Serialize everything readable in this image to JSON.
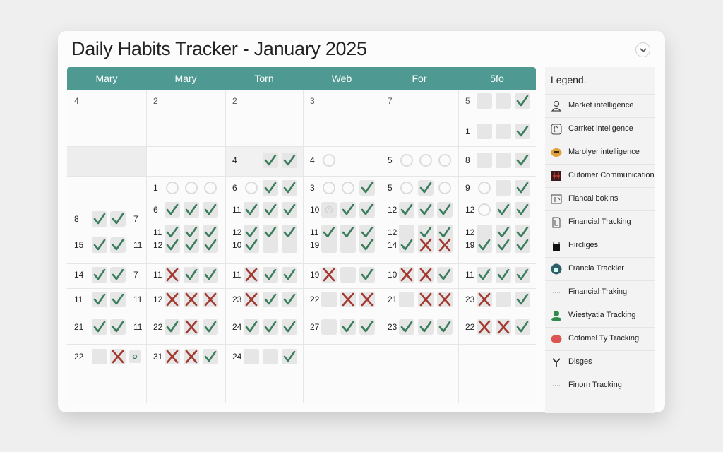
{
  "header": {
    "title": "Daily Habits Tracker - January 2025",
    "collapse_icon": "chevron-down-icon"
  },
  "colors": {
    "header": "#4e9a92",
    "check": "#3a7d5c",
    "cross": "#a3382f",
    "box": "#e6e6e6"
  },
  "columns": [
    "Mary",
    "Mary",
    "Torn",
    "Web",
    "For",
    "5fo"
  ],
  "mark_legend": {
    "c": "check",
    "x": "cross",
    "e": "empty-box",
    "o": "circle",
    "t": "clock",
    "s": "small-dot",
    "_": "blank"
  },
  "lines": [
    {
      "row": "A1",
      "cells": [
        {
          "n": "4",
          "m": ""
        },
        {
          "n": "2",
          "m": ""
        },
        {
          "n": "2",
          "m": ""
        },
        {
          "n": "3",
          "m": ""
        },
        {
          "n": "7",
          "m": ""
        },
        {
          "n": "5",
          "m": "eec"
        }
      ]
    },
    {
      "row": "A2",
      "cells": [
        null,
        null,
        null,
        null,
        null,
        {
          "n": "1",
          "m": "eec"
        }
      ]
    },
    {
      "row": "B1",
      "cells": [
        null,
        null,
        {
          "n": "4",
          "m": "_cc"
        },
        {
          "n": "4",
          "m": "o"
        },
        {
          "n": "5",
          "m": "ooo"
        },
        {
          "n": "8",
          "m": "eec"
        }
      ]
    },
    {
      "row": "C1",
      "cells": [
        null,
        {
          "n": "1",
          "m": "ooo"
        },
        {
          "n": "6",
          "m": "occ"
        },
        {
          "n": "3",
          "m": "ooc"
        },
        {
          "n": "5",
          "m": "oco"
        },
        {
          "n": "9",
          "m": "oec"
        }
      ]
    },
    {
      "row": "C2",
      "cells": [
        null,
        {
          "n": "6",
          "m": "ccc"
        },
        {
          "n": "11",
          "m": "ccc"
        },
        {
          "n": "10",
          "m": "tcc"
        },
        {
          "n": "12",
          "m": "ccc"
        },
        {
          "n": "12",
          "m": "occ"
        }
      ]
    },
    {
      "row": "C3",
      "cells": [
        {
          "n": "8",
          "m": "cc",
          "t": "7"
        },
        null,
        null,
        null,
        null,
        null
      ]
    },
    {
      "row": "C4",
      "cells": [
        null,
        {
          "n": "11",
          "m": "ccc"
        },
        {
          "n": "12",
          "m": "ccc"
        },
        {
          "n": "11",
          "m": "ccc"
        },
        {
          "n": "12",
          "m": "ecc"
        },
        {
          "n": "12",
          "m": "ecc"
        }
      ]
    },
    {
      "row": "C5",
      "cells": [
        {
          "n": "15",
          "m": "cc",
          "t": "11"
        },
        {
          "n": "12",
          "m": "ccc"
        },
        {
          "n": "10",
          "m": "cee"
        },
        {
          "n": "19",
          "m": "eec"
        },
        {
          "n": "14",
          "m": "cxx"
        },
        {
          "n": "19",
          "m": "ccc"
        }
      ]
    },
    {
      "row": "D1",
      "cells": [
        {
          "n": "14",
          "m": "cc",
          "t": "7"
        },
        {
          "n": "11",
          "m": "xcc"
        },
        {
          "n": "11",
          "m": "xcc"
        },
        {
          "n": "19",
          "m": "xec"
        },
        {
          "n": "10",
          "m": "xxc"
        },
        {
          "n": "11",
          "m": "ccc"
        }
      ]
    },
    {
      "row": "E1",
      "cells": [
        {
          "n": "11",
          "m": "cc",
          "t": "11"
        },
        {
          "n": "12",
          "m": "xxx"
        },
        {
          "n": "23",
          "m": "xcc"
        },
        {
          "n": "22",
          "m": "exx"
        },
        {
          "n": "21",
          "m": "exx"
        },
        {
          "n": "23",
          "m": "xec"
        }
      ]
    },
    {
      "row": "E2",
      "cells": [
        {
          "n": "21",
          "m": "cc",
          "t": "11"
        },
        {
          "n": "22",
          "m": "cxc"
        },
        {
          "n": "24",
          "m": "ccc"
        },
        {
          "n": "27",
          "m": "ecc"
        },
        {
          "n": "23",
          "m": "ccc"
        },
        {
          "n": "22",
          "m": "xxc"
        }
      ]
    },
    {
      "row": "F1",
      "cells": [
        {
          "n": "22",
          "m": "exs"
        },
        {
          "n": "31",
          "m": "xxc"
        },
        {
          "n": "24",
          "m": "eec"
        },
        null,
        null,
        null
      ]
    }
  ],
  "legend": {
    "title": "Legend.",
    "items": [
      {
        "label": "Market ıntelligence",
        "icon": "person-icon"
      },
      {
        "label": "Carrket inteligence",
        "icon": "clock-frame-icon"
      },
      {
        "label": "Marolyer intelligence",
        "icon": "orange-badge-icon"
      },
      {
        "label": "Cutomer Communication",
        "icon": "red-grid-icon"
      },
      {
        "label": "Fiancal bokins",
        "icon": "chart-frame-icon"
      },
      {
        "label": "Financial Tracking",
        "icon": "document-icon"
      },
      {
        "label": "Hircliges",
        "icon": "black-bag-icon"
      },
      {
        "label": "Francla Trackler",
        "icon": "teal-home-icon"
      },
      {
        "label": "Financial Traking",
        "icon": "small-text-icon"
      },
      {
        "label": "Wiestyatla Tracking",
        "icon": "green-figure-icon"
      },
      {
        "label": "Cotomel Ty Tracking",
        "icon": "red-pill-icon"
      },
      {
        "label": "Dlsges",
        "icon": "y-branch-icon"
      },
      {
        "label": "Finorn Tracking",
        "icon": "small-text-icon"
      }
    ]
  }
}
